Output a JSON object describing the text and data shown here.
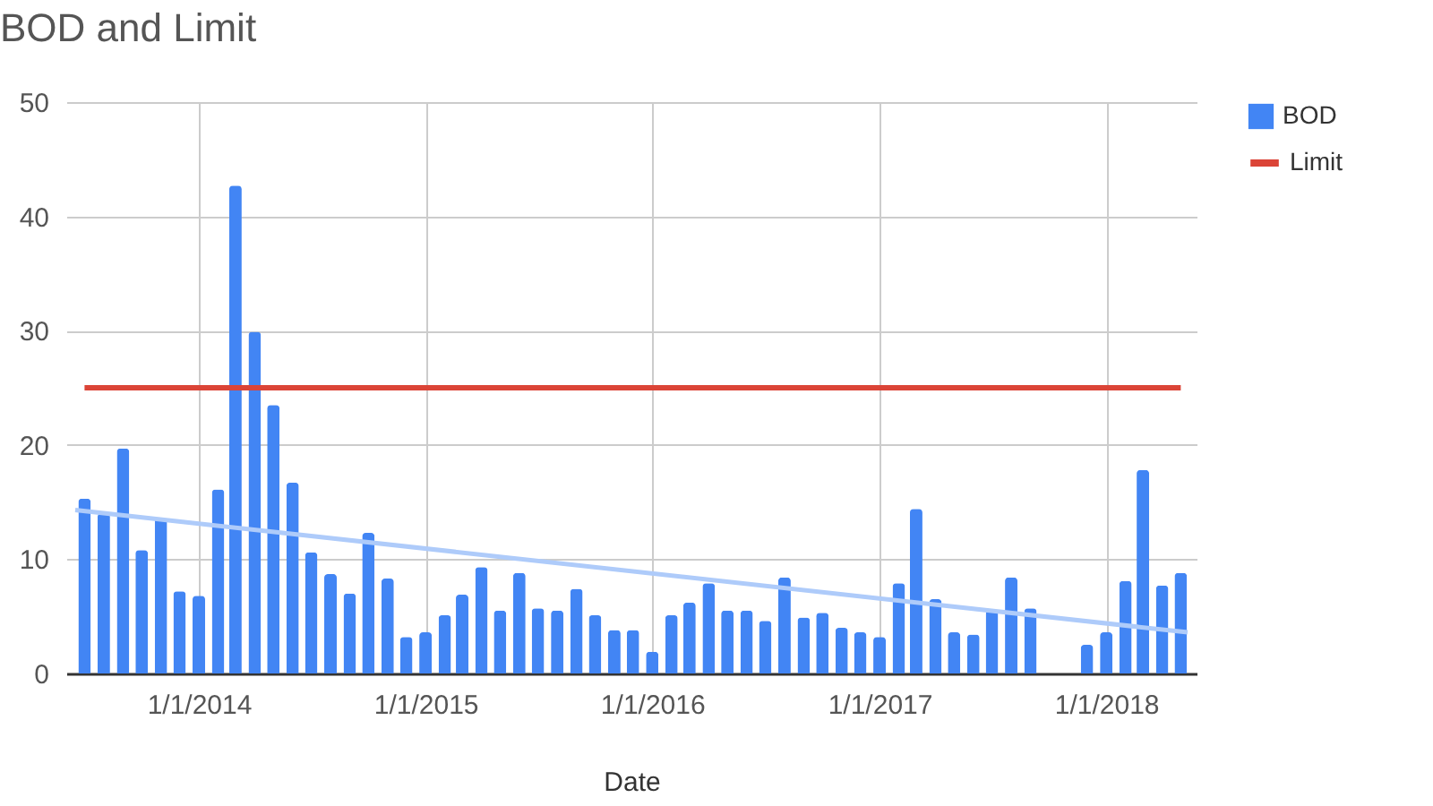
{
  "chart_data": {
    "type": "bar",
    "title": "BOD and Limit",
    "xlabel": "Date",
    "x": [
      "2013-07",
      "2013-08",
      "2013-09",
      "2013-10",
      "2013-11",
      "2013-12",
      "2014-01",
      "2014-02",
      "2014-03",
      "2014-04",
      "2014-05",
      "2014-06",
      "2014-07",
      "2014-08",
      "2014-09",
      "2014-10",
      "2014-11",
      "2014-12",
      "2015-01",
      "2015-02",
      "2015-03",
      "2015-04",
      "2015-05",
      "2015-06",
      "2015-07",
      "2015-08",
      "2015-09",
      "2015-10",
      "2015-11",
      "2015-12",
      "2016-01",
      "2016-02",
      "2016-03",
      "2016-04",
      "2016-05",
      "2016-06",
      "2016-07",
      "2016-08",
      "2016-09",
      "2016-10",
      "2016-11",
      "2016-12",
      "2017-01",
      "2017-02",
      "2017-03",
      "2017-04",
      "2017-05",
      "2017-06",
      "2017-07",
      "2017-08",
      "2017-09",
      "2017-10",
      "2017-11",
      "2017-12",
      "2018-01",
      "2018-02",
      "2018-03",
      "2018-04",
      "2018-05"
    ],
    "series": [
      {
        "name": "BOD",
        "color": "#4285f4",
        "values": [
          15.3,
          14,
          19.7,
          10.8,
          13.6,
          7.2,
          6.8,
          16.1,
          42.7,
          29.9,
          23.5,
          16.7,
          10.6,
          8.7,
          7,
          12.3,
          8.3,
          3.2,
          3.6,
          5.1,
          6.9,
          9.3,
          5.5,
          8.8,
          5.7,
          5.5,
          7.4,
          5.1,
          3.8,
          3.8,
          1.9,
          5.1,
          6.2,
          7.9,
          5.5,
          5.5,
          4.6,
          8.4,
          4.9,
          5.3,
          4,
          3.6,
          3.2,
          7.9,
          14.4,
          6.5,
          3.6,
          3.4,
          5.5,
          8.4,
          5.7,
          null,
          null,
          2.5,
          3.6,
          8.1,
          17.8,
          7.7,
          8.8
        ]
      },
      {
        "name": "Limit",
        "type": "line",
        "color": "#db4437",
        "x": [
          "2013-07",
          "2018-05"
        ],
        "values": [
          25,
          25
        ]
      },
      {
        "type": "line",
        "color": "#aecbfa",
        "x": [
          "2013-06-16",
          "2018-05-12"
        ],
        "values": [
          14.3,
          3.6
        ]
      }
    ],
    "xlim": [
      "2013-06-16",
      "2018-05-12"
    ],
    "xticks": [
      {
        "value": "2014-01-01",
        "label": "1/1/2014"
      },
      {
        "value": "2015-01-01",
        "label": "1/1/2015"
      },
      {
        "value": "2016-01-01",
        "label": "1/1/2016"
      },
      {
        "value": "2017-01-01",
        "label": "1/1/2017"
      },
      {
        "value": "2018-01-01",
        "label": "1/1/2018"
      }
    ],
    "ylim": [
      0,
      50
    ],
    "yticks": [
      0,
      10,
      20,
      30,
      40,
      50
    ],
    "grid": true,
    "legend": "top right"
  }
}
